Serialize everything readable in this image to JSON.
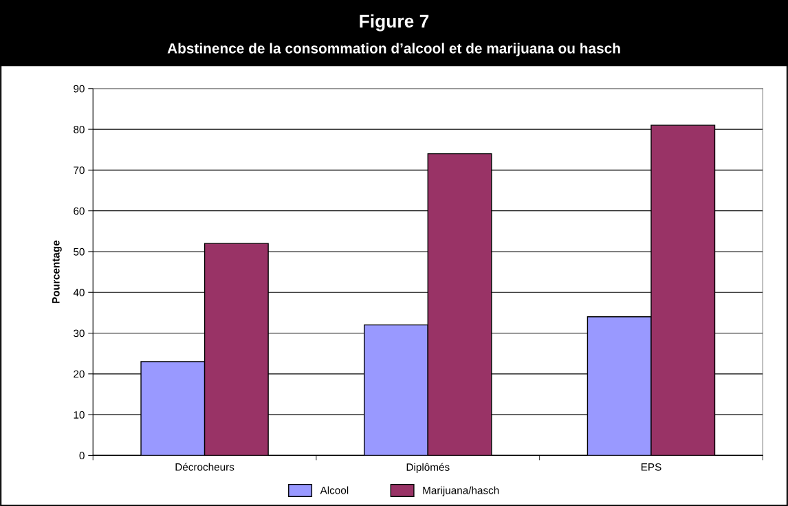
{
  "chart_data": {
    "type": "bar",
    "title": "Figure 7",
    "subtitle": "Abstinence de la consommation d’alcool et de marijuana ou hasch",
    "ylabel": "Pourcentage",
    "categories": [
      "Décrocheurs",
      "Diplômés",
      "EPS"
    ],
    "series": [
      {
        "name": "Alcool",
        "color": "#9999ff",
        "values": [
          23,
          32,
          34
        ]
      },
      {
        "name": "Marijuana/hasch",
        "color": "#993366",
        "values": [
          52,
          74,
          81
        ]
      }
    ],
    "ylim": [
      0,
      90
    ],
    "yticks": [
      0,
      10,
      20,
      30,
      40,
      50,
      60,
      70,
      80,
      90
    ],
    "grid": "y",
    "legend": "bottom"
  }
}
